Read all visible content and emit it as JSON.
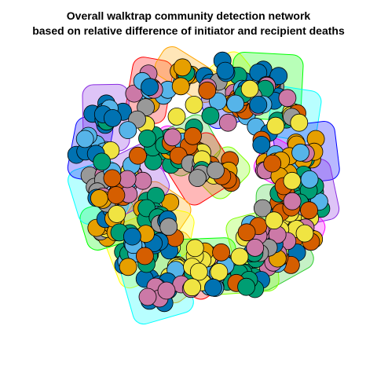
{
  "title": {
    "line1": "Overall walktrap community detection network",
    "line2": "based on relative difference of initiator and recipient deaths"
  },
  "network": {
    "algorithm": "walktrap",
    "node_palette": [
      "#E69F00",
      "#56B4E9",
      "#009E73",
      "#F0E442",
      "#0072B2",
      "#D55E00",
      "#CC79A7",
      "#999999"
    ],
    "hull_palette": [
      "#FF0000",
      "#FFA500",
      "#FFFF00",
      "#00FF00",
      "#00FFFF",
      "#0000FF",
      "#8A2BE2",
      "#FF00FF",
      "#32CD32",
      "#7FFF00"
    ],
    "node_outline": "#000000",
    "layout_shape": "ring with central cluster",
    "seed": 7
  }
}
